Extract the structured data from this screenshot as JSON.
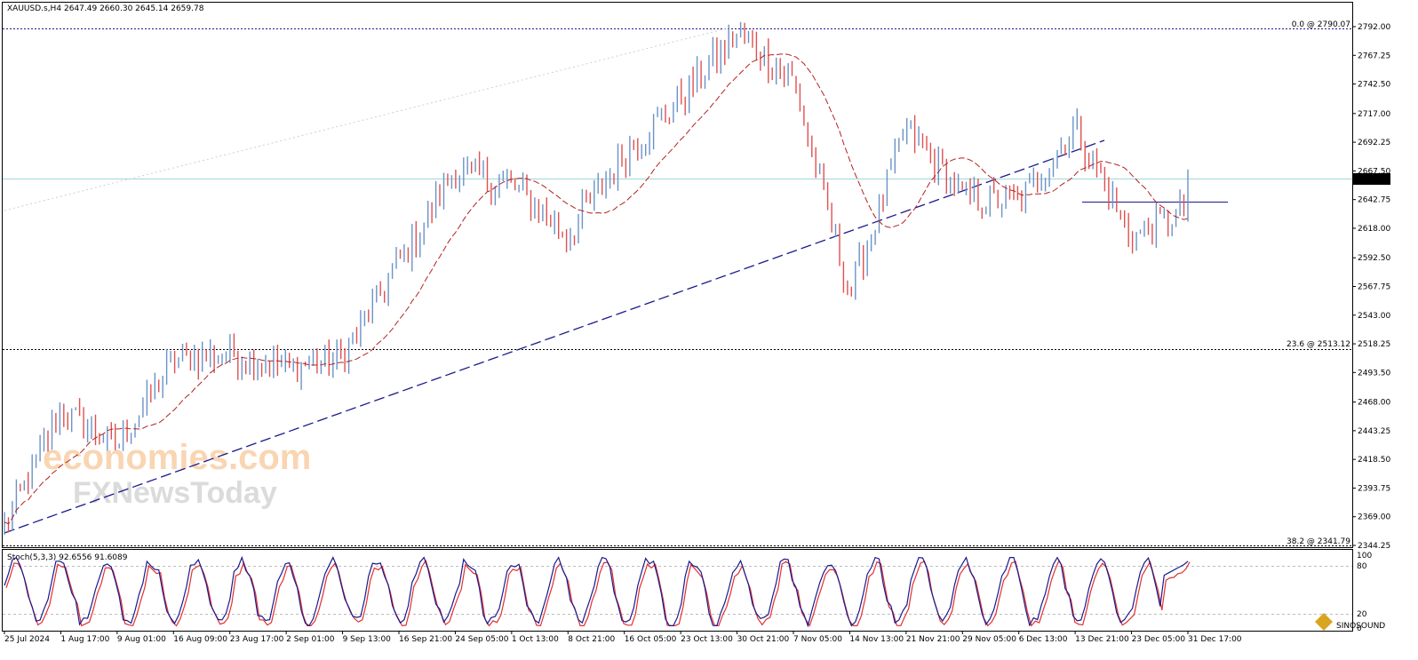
{
  "header": {
    "symbol": "XAUUSD.s,H4",
    "ohlc": "2647.49 2660.30 2645.14 2659.78"
  },
  "price_axis": {
    "ticks": [
      "2792.00",
      "2767.25",
      "2742.50",
      "2717.00",
      "2692.25",
      "2667.50",
      "2642.75",
      "2618.00",
      "2592.50",
      "2567.75",
      "2543.00",
      "2518.25",
      "2493.50",
      "2468.00",
      "2443.25",
      "2418.50",
      "2393.75",
      "2369.00",
      "2344.25"
    ],
    "current_price": "2659.78"
  },
  "fib_levels": [
    {
      "label": "0.0 @ 2790.07",
      "value": 2790.07
    },
    {
      "label": "23.6 @ 2513.12",
      "value": 2513.12
    },
    {
      "label": "38.2 @ 2341.79",
      "value": 2341.79
    }
  ],
  "stoch": {
    "label": "Stoch(5,3,3) 92.6556 91.6089",
    "levels": [
      "100",
      "80",
      "20",
      "0"
    ]
  },
  "time_axis": [
    "25 Jul 2024",
    "1 Aug 17:00",
    "9 Aug 01:00",
    "16 Aug 09:00",
    "23 Aug 17:00",
    "2 Sep 01:00",
    "9 Sep 13:00",
    "16 Sep 21:00",
    "24 Sep 05:00",
    "1 Oct 13:00",
    "8 Oct 21:00",
    "16 Oct 05:00",
    "23 Oct 13:00",
    "30 Oct 21:00",
    "7 Nov 05:00",
    "14 Nov 13:00",
    "21 Nov 21:00",
    "29 Nov 05:00",
    "6 Dec 13:00",
    "13 Dec 21:00",
    "23 Dec 05:00",
    "31 Dec 17:00"
  ],
  "watermark": {
    "line1": "economies.com",
    "line2": "FXNewsToday",
    "corner": "SINOSOUND"
  },
  "colors": {
    "bull": "#6a93c8",
    "bear": "#e05050",
    "ma": "#b22222",
    "trend": "#1a1a8c",
    "current_price_line": "#9fd8d8",
    "stoch_main": "#1a1a8c",
    "stoch_signal": "#e03030"
  },
  "chart_data": {
    "type": "candlestick",
    "symbol": "XAUUSD.s",
    "timeframe": "H4",
    "ylim": [
      2344.25,
      2792.0
    ],
    "anchors": [
      [
        "25 Jul 2024",
        2360
      ],
      [
        "1 Aug 17:00",
        2460
      ],
      [
        "9 Aug 01:00",
        2430
      ],
      [
        "16 Aug 09:00",
        2505
      ],
      [
        "23 Aug 17:00",
        2510
      ],
      [
        "2 Sep 01:00",
        2498
      ],
      [
        "9 Sep 13:00",
        2505
      ],
      [
        "16 Sep 21:00",
        2588
      ],
      [
        "24 Sep 05:00",
        2668
      ],
      [
        "1 Oct 13:00",
        2655
      ],
      [
        "8 Oct 21:00",
        2612
      ],
      [
        "16 Oct 05:00",
        2682
      ],
      [
        "23 Oct 13:00",
        2730
      ],
      [
        "30 Oct 21:00",
        2785
      ],
      [
        "7 Nov 05:00",
        2745
      ],
      [
        "14 Nov 13:00",
        2560
      ],
      [
        "21 Nov 21:00",
        2705
      ],
      [
        "29 Nov 05:00",
        2645
      ],
      [
        "6 Dec 13:00",
        2640
      ],
      [
        "13 Dec 21:00",
        2705
      ],
      [
        "23 Dec 05:00",
        2610
      ],
      [
        "31 Dec 17:00",
        2635
      ]
    ],
    "last": 2659.78,
    "stoch_last": [
      92.6556,
      91.6089
    ]
  }
}
